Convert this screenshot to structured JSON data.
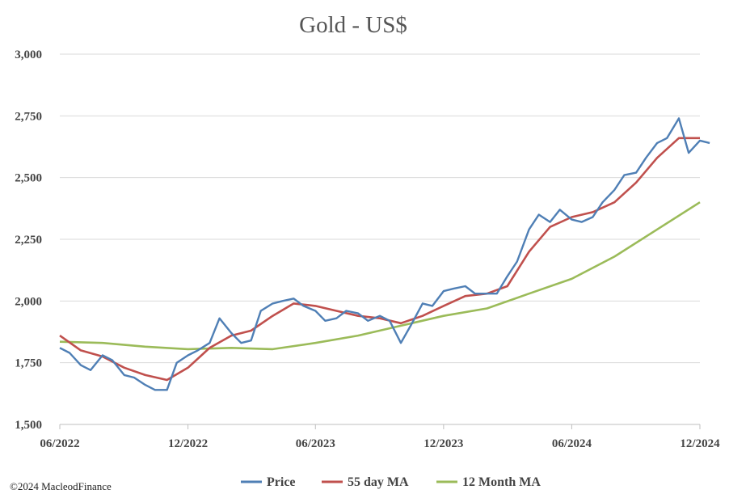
{
  "chart_data": {
    "type": "line",
    "title": "Gold - US$",
    "xlabel": "",
    "ylabel": "",
    "ylim": [
      1500,
      3000
    ],
    "yticks": [
      1500,
      1750,
      2000,
      2250,
      2500,
      2750,
      3000
    ],
    "ytick_labels": [
      "1,500",
      "1,750",
      "2,000",
      "2,250",
      "2,500",
      "2,750",
      "3,000"
    ],
    "xlim": [
      "2022-06",
      "2024-12"
    ],
    "xticks": [
      "2022-06",
      "2022-12",
      "2023-06",
      "2023-12",
      "2024-06",
      "2024-12"
    ],
    "xtick_labels": [
      "06/2022",
      "12/2022",
      "06/2023",
      "12/2023",
      "06/2024",
      "12/2024"
    ],
    "grid": "horizontal",
    "legend_position": "bottom",
    "series": [
      {
        "name": "Price",
        "color": "#4f7fb5",
        "x": [
          "2022-06-01",
          "2022-06-15",
          "2022-07-01",
          "2022-07-15",
          "2022-08-01",
          "2022-08-15",
          "2022-09-01",
          "2022-09-15",
          "2022-10-01",
          "2022-10-15",
          "2022-11-01",
          "2022-11-15",
          "2022-12-01",
          "2022-12-15",
          "2023-01-01",
          "2023-01-15",
          "2023-02-01",
          "2023-02-15",
          "2023-03-01",
          "2023-03-15",
          "2023-04-01",
          "2023-04-15",
          "2023-05-01",
          "2023-05-15",
          "2023-06-01",
          "2023-06-15",
          "2023-07-01",
          "2023-07-15",
          "2023-08-01",
          "2023-08-15",
          "2023-09-01",
          "2023-09-15",
          "2023-10-01",
          "2023-10-15",
          "2023-11-01",
          "2023-11-15",
          "2023-12-01",
          "2023-12-15",
          "2024-01-01",
          "2024-01-15",
          "2024-02-01",
          "2024-02-15",
          "2024-03-01",
          "2024-03-15",
          "2024-04-01",
          "2024-04-15",
          "2024-05-01",
          "2024-05-15",
          "2024-06-01",
          "2024-06-15",
          "2024-07-01",
          "2024-07-15",
          "2024-08-01",
          "2024-08-15",
          "2024-09-01",
          "2024-09-15",
          "2024-10-01",
          "2024-10-15",
          "2024-11-01",
          "2024-11-15",
          "2024-12-01",
          "2024-12-15"
        ],
        "values": [
          1810,
          1790,
          1740,
          1720,
          1780,
          1760,
          1700,
          1690,
          1660,
          1640,
          1640,
          1750,
          1780,
          1800,
          1830,
          1930,
          1870,
          1830,
          1840,
          1960,
          1990,
          2000,
          2010,
          1980,
          1960,
          1920,
          1930,
          1960,
          1950,
          1920,
          1940,
          1920,
          1830,
          1900,
          1990,
          1980,
          2040,
          2050,
          2060,
          2030,
          2030,
          2030,
          2100,
          2160,
          2290,
          2350,
          2320,
          2370,
          2330,
          2320,
          2340,
          2400,
          2450,
          2510,
          2520,
          2580,
          2640,
          2660,
          2740,
          2600,
          2650,
          2640
        ]
      },
      {
        "name": "55 day MA",
        "color": "#c0504d",
        "x": [
          "2022-06-01",
          "2022-07-01",
          "2022-08-01",
          "2022-09-01",
          "2022-10-01",
          "2022-11-01",
          "2022-12-01",
          "2023-01-01",
          "2023-02-01",
          "2023-03-01",
          "2023-04-01",
          "2023-05-01",
          "2023-06-01",
          "2023-07-01",
          "2023-08-01",
          "2023-09-01",
          "2023-10-01",
          "2023-11-01",
          "2023-12-01",
          "2024-01-01",
          "2024-02-01",
          "2024-03-01",
          "2024-04-01",
          "2024-05-01",
          "2024-06-01",
          "2024-07-01",
          "2024-08-01",
          "2024-09-01",
          "2024-10-01",
          "2024-11-01",
          "2024-12-01"
        ],
        "values": [
          1860,
          1800,
          1775,
          1730,
          1700,
          1680,
          1730,
          1810,
          1860,
          1880,
          1940,
          1990,
          1980,
          1960,
          1940,
          1930,
          1910,
          1940,
          1980,
          2020,
          2030,
          2060,
          2200,
          2300,
          2340,
          2360,
          2400,
          2480,
          2580,
          2660,
          2660
        ]
      },
      {
        "name": "12 Month MA",
        "color": "#9bbb59",
        "x": [
          "2022-06-01",
          "2022-08-01",
          "2022-10-01",
          "2022-12-01",
          "2023-02-01",
          "2023-04-01",
          "2023-06-01",
          "2023-08-01",
          "2023-10-01",
          "2023-12-01",
          "2024-02-01",
          "2024-04-01",
          "2024-06-01",
          "2024-08-01",
          "2024-10-01",
          "2024-12-01"
        ],
        "values": [
          1835,
          1830,
          1815,
          1805,
          1810,
          1805,
          1830,
          1860,
          1900,
          1940,
          1970,
          2030,
          2090,
          2180,
          2290,
          2400
        ]
      }
    ]
  },
  "legend": {
    "items": [
      {
        "label": "Price",
        "color": "#4f7fb5"
      },
      {
        "label": "55 day MA",
        "color": "#c0504d"
      },
      {
        "label": "12 Month MA",
        "color": "#9bbb59"
      }
    ]
  },
  "footer": {
    "copyright": "©2024 MacleodFinance"
  }
}
